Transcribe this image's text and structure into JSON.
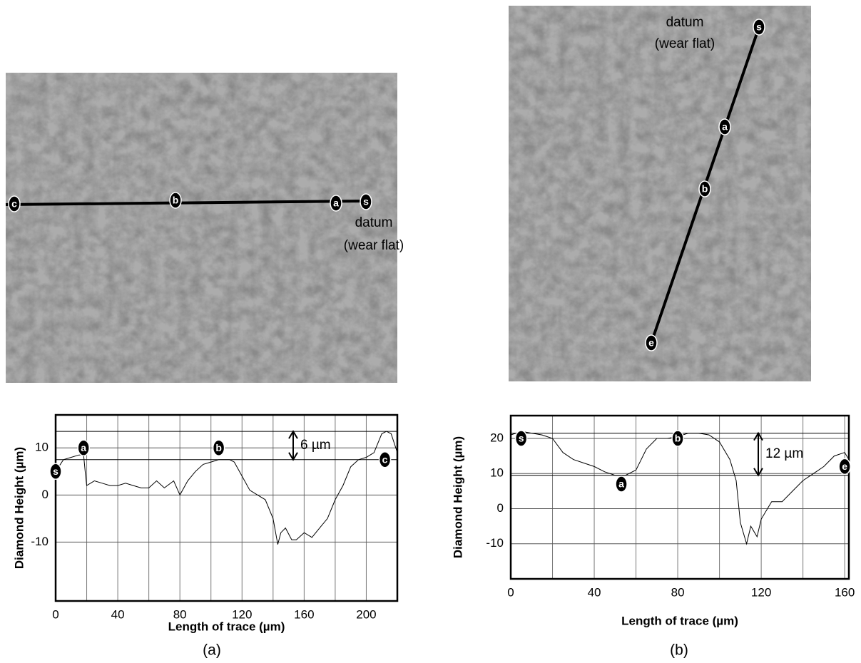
{
  "chart_data": [
    {
      "type": "line",
      "caption": "(a)",
      "xlabel": "Length of trace (µm)",
      "ylabel": "Diamond Height (µm)",
      "xlim": [
        0,
        220
      ],
      "ylim": [
        -22.5,
        17
      ],
      "xticks": [
        0,
        40,
        80,
        120,
        160,
        200
      ],
      "xminor": [
        20,
        60,
        100,
        140,
        180
      ],
      "yticks": [
        -10,
        0,
        10
      ],
      "color": "#000000",
      "x": [
        0,
        5,
        10,
        15,
        18,
        19,
        20,
        25,
        30,
        35,
        40,
        45,
        50,
        55,
        60,
        65,
        70,
        76,
        80,
        85,
        90,
        95,
        100,
        105,
        108,
        112,
        115,
        120,
        125,
        130,
        135,
        140,
        143,
        145,
        148,
        152,
        155,
        160,
        165,
        170,
        175,
        180,
        185,
        190,
        195,
        200,
        205,
        210,
        213,
        216,
        220
      ],
      "values": [
        5,
        7.5,
        8,
        8.5,
        8.5,
        5,
        2,
        3,
        2.5,
        2,
        2,
        2.5,
        2,
        1.5,
        1.5,
        3,
        1.5,
        3,
        0,
        3,
        5,
        6.5,
        7,
        7.5,
        7.5,
        7.5,
        7,
        4,
        1,
        0,
        -1,
        -5,
        -10.5,
        -8,
        -7,
        -9.5,
        -9.5,
        -8,
        -9,
        -7,
        -5,
        -1,
        2,
        6,
        7.5,
        8,
        9,
        13,
        13.5,
        13,
        9
      ],
      "ref_lines": [
        13.5,
        7.5
      ],
      "ref_label": "6 µm",
      "markers": [
        {
          "label": "s",
          "x": 0,
          "y": 5
        },
        {
          "label": "a",
          "x": 18,
          "y": 10
        },
        {
          "label": "b",
          "x": 105,
          "y": 10
        },
        {
          "label": "c",
          "x": 212,
          "y": 7.5
        }
      ],
      "image_labels": [
        "c",
        "b",
        "a",
        "s"
      ],
      "datum": [
        "datum",
        "(wear flat)"
      ]
    },
    {
      "type": "line",
      "caption": "(b)",
      "xlabel": "Length of trace (µm)",
      "ylabel": "Diamond Height (µm)",
      "xlim": [
        0,
        162
      ],
      "ylim": [
        -20,
        26.5
      ],
      "xticks": [
        0,
        40,
        80,
        120,
        160
      ],
      "xminor": [
        20,
        60,
        100,
        140
      ],
      "yticks": [
        -10,
        0,
        10,
        20
      ],
      "color": "#000000",
      "x": [
        0,
        5,
        10,
        15,
        20,
        25,
        30,
        35,
        40,
        45,
        50,
        55,
        60,
        65,
        70,
        75,
        80,
        85,
        90,
        95,
        100,
        105,
        108,
        110,
        113,
        115,
        118,
        120,
        125,
        130,
        135,
        140,
        145,
        150,
        155,
        160,
        162
      ],
      "values": [
        21,
        22,
        21.5,
        21,
        20,
        16,
        14,
        13,
        12,
        10.5,
        9.5,
        9.5,
        11,
        17,
        20,
        20,
        20.5,
        21.5,
        21.5,
        21,
        19,
        14,
        8,
        -4,
        -10,
        -5,
        -8,
        -3,
        2,
        2,
        5,
        8,
        10,
        12,
        15,
        16,
        14
      ],
      "ref_lines": [
        21.5,
        9.5
      ],
      "ref_label": "12 µm",
      "markers": [
        {
          "label": "s",
          "x": 5,
          "y": 20
        },
        {
          "label": "a",
          "x": 53,
          "y": 7
        },
        {
          "label": "b",
          "x": 80,
          "y": 20
        },
        {
          "label": "e",
          "x": 160,
          "y": 12
        }
      ],
      "image_labels": [
        "s",
        "a",
        "b",
        "e"
      ],
      "datum": [
        "datum",
        "(wear flat)"
      ]
    }
  ]
}
